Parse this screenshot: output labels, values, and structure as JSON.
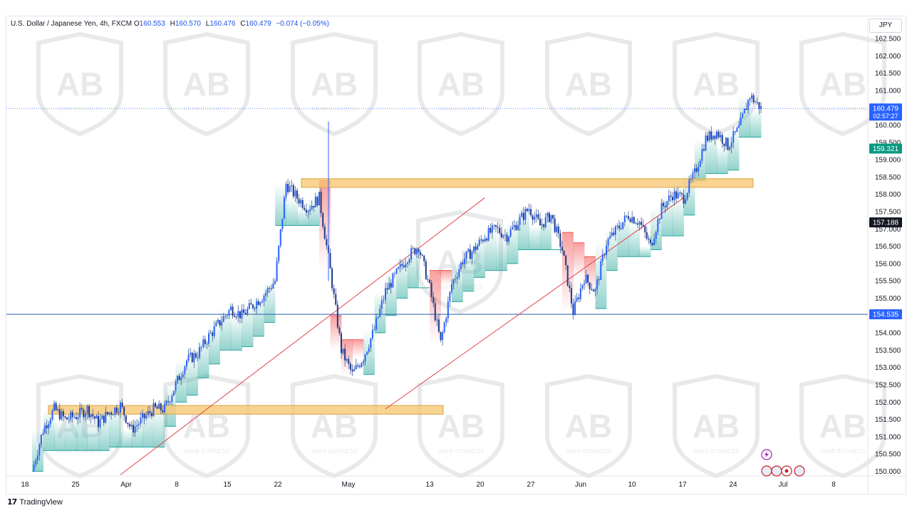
{
  "header": {
    "symbol": "U.S. Dollar / Japanese Yen, 4h, FXCM",
    "o_label": "O",
    "o_value": "160.553",
    "h_label": "H",
    "h_value": "160.570",
    "l_label": "L",
    "l_value": "160.476",
    "c_label": "C",
    "c_value": "160.479",
    "change": "−0.074 (−0.05%)"
  },
  "currency_button": "JPY",
  "footer": {
    "brand": "TradingView"
  },
  "watermark": {
    "text": "ARAB BUSINESS"
  },
  "colors": {
    "candle_body": "#2962ff",
    "zone": "#f7c46c",
    "horizontal_line": "#2a5db0",
    "trendline": "#e0454f",
    "bull_fill": "#26a69a",
    "bear_fill": "#ef5350",
    "price_label_bg": "#2962ff",
    "stop_label_bg": "#089981",
    "black_label_bg": "#131722"
  },
  "chart_data": {
    "type": "candlestick",
    "ylim": [
      149.8,
      162.8
    ],
    "y_ticks": [
      "162.500",
      "162.000",
      "161.500",
      "161.000",
      "160.500",
      "160.000",
      "159.500",
      "159.000",
      "158.500",
      "158.000",
      "157.500",
      "157.000",
      "156.500",
      "156.000",
      "155.500",
      "155.000",
      "154.500",
      "154.000",
      "153.500",
      "153.000",
      "152.500",
      "152.000",
      "151.500",
      "151.000",
      "150.500",
      "150.000"
    ],
    "x_ticks": [
      "18",
      "25",
      "Apr",
      "8",
      "15",
      "22",
      "May",
      "13",
      "20",
      "27",
      "Jun",
      "10",
      "17",
      "24",
      "Jul",
      "8"
    ],
    "price_path": [
      [
        0,
        150.0
      ],
      [
        1,
        151.2
      ],
      [
        2,
        151.8
      ],
      [
        3,
        151.5
      ],
      [
        4,
        151.6
      ],
      [
        5,
        151.8
      ],
      [
        6,
        151.4
      ],
      [
        7,
        151.7
      ],
      [
        8,
        151.9
      ],
      [
        9,
        151.2
      ],
      [
        10,
        151.5
      ],
      [
        11,
        151.8
      ],
      [
        12,
        151.8
      ],
      [
        13,
        152.5
      ],
      [
        14,
        153.2
      ],
      [
        15,
        153.4
      ],
      [
        16,
        153.9
      ],
      [
        17,
        154.3
      ],
      [
        18,
        154.7
      ],
      [
        19,
        154.5
      ],
      [
        20,
        154.8
      ],
      [
        21,
        155.1
      ],
      [
        22,
        155.5
      ],
      [
        23,
        158.3
      ],
      [
        24,
        157.9
      ],
      [
        25,
        157.6
      ],
      [
        26,
        157.9
      ],
      [
        27,
        155.8
      ],
      [
        28,
        153.5
      ],
      [
        29,
        152.8
      ],
      [
        30,
        153.3
      ],
      [
        31,
        154.1
      ],
      [
        32,
        155.2
      ],
      [
        33,
        155.7
      ],
      [
        34,
        156.2
      ],
      [
        35,
        156.5
      ],
      [
        36,
        155.3
      ],
      [
        37,
        153.7
      ],
      [
        38,
        155.4
      ],
      [
        39,
        156.1
      ],
      [
        40,
        156.4
      ],
      [
        41,
        156.8
      ],
      [
        42,
        157.0
      ],
      [
        43,
        156.8
      ],
      [
        44,
        157.2
      ],
      [
        45,
        157.6
      ],
      [
        46,
        157.1
      ],
      [
        47,
        157.4
      ],
      [
        48,
        156.4
      ],
      [
        49,
        154.6
      ],
      [
        50,
        155.6
      ],
      [
        51,
        155.2
      ],
      [
        52,
        156.6
      ],
      [
        53,
        157.0
      ],
      [
        54,
        157.4
      ],
      [
        55,
        157.2
      ],
      [
        56,
        156.5
      ],
      [
        57,
        157.6
      ],
      [
        58,
        158.0
      ],
      [
        59,
        157.9
      ],
      [
        60,
        158.6
      ],
      [
        61,
        159.6
      ],
      [
        62,
        159.8
      ],
      [
        63,
        159.4
      ],
      [
        64,
        159.9
      ],
      [
        65,
        160.85
      ],
      [
        66,
        160.48
      ]
    ],
    "current_price": "160.479",
    "countdown": "02:57:27",
    "stop_level": "159.321",
    "black_level": "157.188",
    "support_level": "154.535",
    "zones": [
      {
        "from_day": 0,
        "to_day": 36,
        "low": 151.65,
        "high": 151.9
      },
      {
        "from_day": 25,
        "to_day": 67,
        "low": 158.2,
        "high": 158.45
      }
    ],
    "trendlines": [
      {
        "x1": 8,
        "y1": 149.9,
        "x2": 41,
        "y2": 157.9
      },
      {
        "x1": 32,
        "y1": 151.8,
        "x2": 59,
        "y2": 157.9
      }
    ],
    "horizontal_lines": [
      154.535
    ]
  }
}
